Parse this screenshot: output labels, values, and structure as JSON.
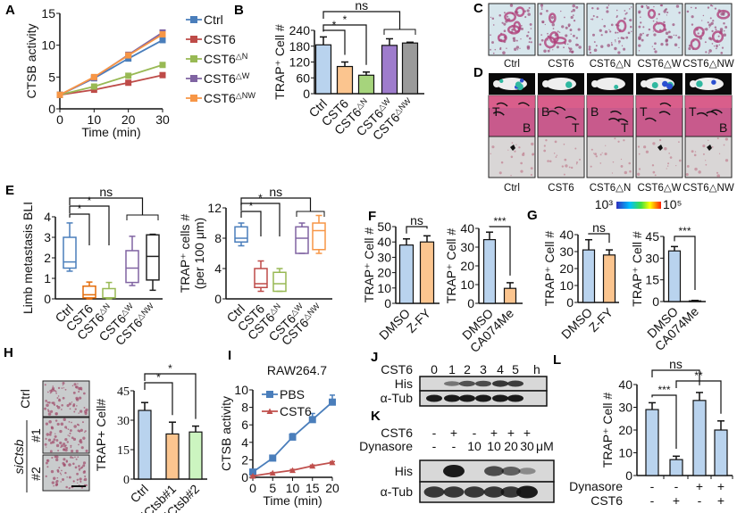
{
  "panels": [
    "A",
    "B",
    "C",
    "D",
    "E",
    "F",
    "G",
    "H",
    "I",
    "J",
    "K",
    "L"
  ],
  "panel_c": {
    "labels": [
      "Ctrl",
      "CST6",
      "CST6△N",
      "CST6△W",
      "CST6△NW"
    ]
  },
  "panel_d": {
    "labels": [
      "Ctrl",
      "CST6",
      "CST6△N",
      "CST6△W",
      "CST6△NW"
    ],
    "he_annotations": [
      [
        "T",
        "B"
      ],
      [
        "B",
        "T"
      ],
      [
        "B",
        "T"
      ],
      [
        "T"
      ],
      [
        "T",
        "B"
      ]
    ],
    "colorbar": {
      "min_label": "10³",
      "max_label": "10⁵",
      "colors": [
        "#3030c0",
        "#00c0ff",
        "#40e040",
        "#ffff00",
        "#ff2000"
      ]
    }
  },
  "panel_h": {
    "image_labels": {
      "ctrl": "Ctrl",
      "group": "siCtsb",
      "rep1": "#1",
      "rep2": "#2"
    }
  },
  "panel_j": {
    "row_label": "CST6",
    "lanes": [
      "0",
      "1",
      "2",
      "3",
      "4",
      "5"
    ],
    "unit": "h",
    "blots": [
      "His",
      "α-Tub"
    ],
    "his_intensity": [
      0,
      0.35,
      0.6,
      0.65,
      0.8,
      0.75
    ]
  },
  "panel_k": {
    "rows": [
      {
        "label": "CST6",
        "values": [
          "-",
          "+",
          "-",
          "+",
          "+",
          "+"
        ],
        "unit": ""
      },
      {
        "label": "Dynasore",
        "values": [
          "-",
          "-",
          "10",
          "10",
          "20",
          "30"
        ],
        "unit": "μM"
      }
    ],
    "blots": [
      "His",
      "α-Tub"
    ],
    "his_intensity": [
      0,
      1,
      0,
      0.65,
      0.5,
      0.2
    ]
  },
  "chart_data": [
    {
      "id": "A",
      "type": "line",
      "xlabel": "Time (min)",
      "ylabel": "CTSB activity",
      "x": [
        0,
        10,
        20,
        30
      ],
      "xlim": [
        0,
        30
      ],
      "ylim": [
        0,
        15
      ],
      "xticks": [
        0,
        10,
        20,
        30
      ],
      "yticks": [
        0,
        5,
        10,
        15
      ],
      "legend": "right",
      "grid": false,
      "series": [
        {
          "name": "Ctrl",
          "color": "#4a7ebb",
          "values": [
            2.2,
            4.8,
            7.9,
            10.8
          ]
        },
        {
          "name": "CST6",
          "color": "#be4b48",
          "values": [
            2.2,
            3.0,
            4.1,
            5.3
          ]
        },
        {
          "name": "CST6△N",
          "color": "#98b954",
          "values": [
            2.2,
            3.5,
            5.2,
            6.9
          ]
        },
        {
          "name": "CST6△W",
          "color": "#8064a2",
          "values": [
            2.2,
            4.9,
            8.5,
            12.0
          ]
        },
        {
          "name": "CST6△NW",
          "color": "#f79646",
          "values": [
            2.2,
            5.0,
            8.4,
            11.7
          ]
        }
      ]
    },
    {
      "id": "B",
      "type": "bar",
      "ylabel": "TRAP⁺ Cell #",
      "categories": [
        "Ctrl",
        "CST6",
        "CST6△N",
        "CST6△W",
        "CST6△NW"
      ],
      "values": [
        185,
        103,
        70,
        183,
        192
      ],
      "errors": [
        30,
        17,
        12,
        25,
        3
      ],
      "colors": [
        "#b9d3ee",
        "#fbc58f",
        "#a6d47c",
        "#9e7ccc",
        "#9a9a9a"
      ],
      "ylim": [
        0,
        240
      ],
      "yticks": [
        0,
        60,
        120,
        180,
        240
      ],
      "significance": [
        {
          "from": 0,
          "to": [
            1
          ],
          "label": "*"
        },
        {
          "from": 0,
          "to": [
            2
          ],
          "label": "*"
        },
        {
          "from": 0,
          "to": [
            3,
            4
          ],
          "label": "ns"
        }
      ]
    },
    {
      "id": "E1",
      "type": "box",
      "ylabel": "Limb metastasis BLI",
      "categories": [
        "Ctrl",
        "CST6",
        "CST6△N",
        "CST6△W",
        "CST6△NW"
      ],
      "boxes": [
        [
          1.35,
          1.5,
          1.8,
          3.0,
          3.7
        ],
        [
          0,
          0.05,
          0.2,
          0.62,
          0.82
        ],
        [
          0,
          0.05,
          0.05,
          0.5,
          0.8
        ],
        [
          0.65,
          0.8,
          1.5,
          2.35,
          3.05
        ],
        [
          0.42,
          0.92,
          2.07,
          3.12,
          3.15
        ]
      ],
      "colors": [
        "#4a7ebb",
        "#e46c0a",
        "#98b954",
        "#8064a2",
        "#222222"
      ],
      "ylim": [
        0,
        4
      ],
      "yticks": [
        0,
        1,
        2,
        3,
        4
      ],
      "significance": [
        {
          "from": 0,
          "to": [
            1
          ],
          "label": "*"
        },
        {
          "from": 0,
          "to": [
            2
          ],
          "label": "*"
        },
        {
          "from": 0,
          "to": [
            3,
            4
          ],
          "label": "ns"
        }
      ]
    },
    {
      "id": "E2",
      "type": "box",
      "ylabel": "TRAP⁺ cells #",
      "ylabel2": "(per 100 μm)",
      "categories": [
        "Ctrl",
        "CST6",
        "CST6△N",
        "CST6△W",
        "CST6△NW"
      ],
      "boxes": [
        [
          7,
          7.5,
          8,
          9.5,
          10
        ],
        [
          1,
          1.5,
          2,
          4,
          5
        ],
        [
          1,
          1,
          2,
          3.5,
          4
        ],
        [
          6,
          6,
          8,
          9.5,
          10
        ],
        [
          6,
          6.5,
          9,
          10,
          11
        ]
      ],
      "colors": [
        "#4a7ebb",
        "#be4b48",
        "#98b954",
        "#8064a2",
        "#f79646"
      ],
      "ylim": [
        0,
        12
      ],
      "yticks": [
        0,
        4,
        8,
        12
      ],
      "significance": [
        {
          "from": 0,
          "to": [
            1
          ],
          "label": "*"
        },
        {
          "from": 0,
          "to": [
            2
          ],
          "label": "*"
        },
        {
          "from": 0,
          "to": [
            3,
            4
          ],
          "label": "ns"
        }
      ]
    },
    {
      "id": "F1",
      "type": "bar",
      "ylabel": "TRAP⁺ Cell #",
      "categories": [
        "DMSO",
        "Z-FY"
      ],
      "values": [
        38,
        40
      ],
      "errors": [
        4,
        4
      ],
      "colors": [
        "#b9d3ee",
        "#fbc58f"
      ],
      "ylim": [
        0,
        50
      ],
      "yticks": [
        0,
        10,
        20,
        30,
        40,
        50
      ],
      "significance": [
        {
          "from": 0,
          "to": [
            1
          ],
          "label": "ns"
        }
      ]
    },
    {
      "id": "F2",
      "type": "bar",
      "ylabel": "TRAP⁺ Cell #",
      "categories": [
        "DMSO",
        "CA074Me"
      ],
      "values": [
        34,
        8
      ],
      "errors": [
        4,
        3
      ],
      "colors": [
        "#b9d3ee",
        "#fbc58f"
      ],
      "ylim": [
        0,
        40
      ],
      "yticks": [
        0,
        10,
        20,
        30,
        40
      ],
      "significance": [
        {
          "from": 0,
          "to": [
            1
          ],
          "label": "***"
        }
      ]
    },
    {
      "id": "G1",
      "type": "bar",
      "ylabel": "TRAP⁺ Cell #",
      "categories": [
        "DMSO",
        "Z-FY"
      ],
      "values": [
        31,
        28
      ],
      "errors": [
        6,
        3
      ],
      "colors": [
        "#b9d3ee",
        "#fbc58f"
      ],
      "ylim": [
        0,
        40
      ],
      "yticks": [
        0,
        10,
        20,
        30,
        40
      ],
      "significance": [
        {
          "from": 0,
          "to": [
            1
          ],
          "label": "ns"
        }
      ]
    },
    {
      "id": "G2",
      "type": "bar",
      "ylabel": "TRAP⁺ Cell #",
      "categories": [
        "DMSO",
        "CA074Me"
      ],
      "values": [
        35,
        0.5
      ],
      "errors": [
        3,
        0.3
      ],
      "colors": [
        "#b9d3ee",
        "#fbc58f"
      ],
      "ylim": [
        0,
        45
      ],
      "yticks": [
        0,
        15,
        30,
        45
      ],
      "significance": [
        {
          "from": 0,
          "to": [
            1
          ],
          "label": "***"
        }
      ]
    },
    {
      "id": "H",
      "type": "bar",
      "ylabel": "TRAP+ Cell#",
      "categories": [
        "Ctrl",
        "siCtsb#1",
        "siCtsb#2"
      ],
      "values": [
        35,
        23,
        24
      ],
      "errors": [
        4,
        6,
        3
      ],
      "colors": [
        "#b9d3ee",
        "#fbc58f",
        "#ccf5c0"
      ],
      "ylim": [
        0,
        45
      ],
      "yticks": [
        0,
        15,
        30,
        45
      ],
      "significance": [
        {
          "from": 0,
          "to": [
            1
          ],
          "label": "*"
        },
        {
          "from": 0,
          "to": [
            2
          ],
          "label": "*"
        }
      ]
    },
    {
      "id": "I",
      "type": "line",
      "title": "RAW264.7",
      "xlabel": "Time (min)",
      "ylabel": "CTSB activity",
      "x": [
        0,
        5,
        10,
        15,
        20
      ],
      "xlim": [
        0,
        20
      ],
      "ylim": [
        0,
        10
      ],
      "xticks": [
        0,
        5,
        10,
        15,
        20
      ],
      "yticks": [
        0,
        2,
        4,
        6,
        8,
        10
      ],
      "legend": "top-left",
      "grid": false,
      "series": [
        {
          "name": "PBS",
          "color": "#4a7ebb",
          "marker": "square",
          "values": [
            0.6,
            2.2,
            4.6,
            6.6,
            8.6
          ],
          "errors": [
            0.2,
            0.2,
            0.4,
            0.7,
            0.8
          ]
        },
        {
          "name": "CST6",
          "color": "#c0504d",
          "marker": "triangle",
          "values": [
            0.15,
            0.5,
            0.8,
            1.3,
            1.7
          ],
          "errors": [
            0.05,
            0.05,
            0.1,
            0.1,
            0.1
          ]
        }
      ]
    },
    {
      "id": "L",
      "type": "bar",
      "ylabel": "TRAP⁺ Cell #",
      "categories": [
        "",
        "",
        "",
        ""
      ],
      "values": [
        29,
        7,
        33,
        20
      ],
      "errors": [
        3,
        1.5,
        3.5,
        4
      ],
      "colors": [
        "#b9d3ee",
        "#b9d3ee",
        "#b9d3ee",
        "#b9d3ee"
      ],
      "ylim": [
        0,
        40
      ],
      "yticks": [
        0,
        10,
        20,
        30,
        40
      ],
      "condition_rows": [
        {
          "label": "Dynasore",
          "values": [
            "-",
            "-",
            "+",
            "+"
          ]
        },
        {
          "label": "CST6",
          "values": [
            "-",
            "+",
            "-",
            "+"
          ]
        }
      ],
      "significance": [
        {
          "from": 0,
          "to": [
            1
          ],
          "label": "***"
        },
        {
          "from": 1,
          "to": [
            3
          ],
          "label": "**"
        },
        {
          "from": 0,
          "to": [
            2
          ],
          "label": "ns"
        }
      ]
    }
  ]
}
